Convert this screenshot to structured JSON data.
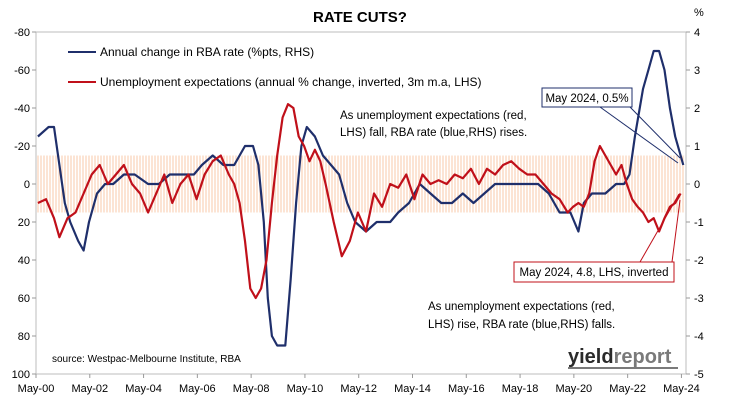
{
  "chart_data": {
    "type": "line",
    "title": "RATE CUTS?",
    "left_axis": {
      "ylim": [
        -80,
        100
      ],
      "inverted": true,
      "ticks": [
        -80,
        -60,
        -40,
        -20,
        0,
        20,
        40,
        60,
        80,
        100
      ]
    },
    "right_axis": {
      "ylim": [
        -5,
        4
      ],
      "ticks": [
        -5,
        -4,
        -3,
        -2,
        -1,
        0,
        1,
        2,
        3,
        4
      ],
      "unit": "%"
    },
    "x_ticks": [
      "May-00",
      "May-02",
      "May-04",
      "May-06",
      "May-08",
      "May-10",
      "May-12",
      "May-14",
      "May-16",
      "May-18",
      "May-20",
      "May-22",
      "May-24"
    ],
    "band": {
      "axis": "left",
      "from": -15,
      "to": 15,
      "color": "#f9d2b8"
    },
    "series": [
      {
        "name": "Annual change in RBA rate (%pts, RHS)",
        "axis": "right",
        "color": "#1f2f6b",
        "points": [
          [
            2000.4,
            1.25
          ],
          [
            2000.8,
            1.5
          ],
          [
            2001.0,
            1.5
          ],
          [
            2001.2,
            0.5
          ],
          [
            2001.4,
            -0.5
          ],
          [
            2001.6,
            -1.0
          ],
          [
            2001.9,
            -1.5
          ],
          [
            2002.1,
            -1.75
          ],
          [
            2002.3,
            -1.0
          ],
          [
            2002.6,
            -0.25
          ],
          [
            2002.9,
            0.0
          ],
          [
            2003.2,
            0.0
          ],
          [
            2003.6,
            0.25
          ],
          [
            2004.0,
            0.25
          ],
          [
            2004.5,
            0.0
          ],
          [
            2004.9,
            0.0
          ],
          [
            2005.3,
            0.25
          ],
          [
            2005.8,
            0.25
          ],
          [
            2006.2,
            0.25
          ],
          [
            2006.5,
            0.5
          ],
          [
            2006.9,
            0.75
          ],
          [
            2007.3,
            0.5
          ],
          [
            2007.7,
            0.5
          ],
          [
            2008.1,
            1.0
          ],
          [
            2008.4,
            1.0
          ],
          [
            2008.6,
            0.5
          ],
          [
            2008.8,
            -1.0
          ],
          [
            2008.95,
            -3.0
          ],
          [
            2009.1,
            -4.0
          ],
          [
            2009.3,
            -4.25
          ],
          [
            2009.6,
            -4.25
          ],
          [
            2009.8,
            -2.5
          ],
          [
            2010.0,
            -0.5
          ],
          [
            2010.2,
            1.0
          ],
          [
            2010.4,
            1.5
          ],
          [
            2010.7,
            1.25
          ],
          [
            2011.0,
            0.75
          ],
          [
            2011.3,
            0.5
          ],
          [
            2011.6,
            0.25
          ],
          [
            2011.9,
            -0.5
          ],
          [
            2012.2,
            -1.0
          ],
          [
            2012.6,
            -1.25
          ],
          [
            2013.0,
            -1.0
          ],
          [
            2013.5,
            -1.0
          ],
          [
            2013.8,
            -0.75
          ],
          [
            2014.2,
            -0.5
          ],
          [
            2014.6,
            0.0
          ],
          [
            2015.0,
            -0.25
          ],
          [
            2015.4,
            -0.5
          ],
          [
            2015.8,
            -0.5
          ],
          [
            2016.2,
            -0.25
          ],
          [
            2016.6,
            -0.5
          ],
          [
            2017.0,
            -0.25
          ],
          [
            2017.4,
            0.0
          ],
          [
            2017.8,
            0.0
          ],
          [
            2018.5,
            0.0
          ],
          [
            2019.0,
            0.0
          ],
          [
            2019.4,
            -0.25
          ],
          [
            2019.8,
            -0.75
          ],
          [
            2020.2,
            -0.75
          ],
          [
            2020.5,
            -1.25
          ],
          [
            2020.7,
            -0.5
          ],
          [
            2021.0,
            -0.25
          ],
          [
            2021.5,
            -0.25
          ],
          [
            2021.9,
            0.0
          ],
          [
            2022.2,
            0.0
          ],
          [
            2022.4,
            0.25
          ],
          [
            2022.6,
            1.25
          ],
          [
            2022.9,
            2.5
          ],
          [
            2023.1,
            3.0
          ],
          [
            2023.3,
            3.5
          ],
          [
            2023.5,
            3.5
          ],
          [
            2023.7,
            3.0
          ],
          [
            2023.9,
            2.0
          ],
          [
            2024.1,
            1.25
          ],
          [
            2024.3,
            0.75
          ],
          [
            2024.4,
            0.5
          ]
        ]
      },
      {
        "name": "Unemployment expectations (annual % change, inverted, 3m m.a, LHS)",
        "axis": "left",
        "color": "#c0101a",
        "points": [
          [
            2000.4,
            10
          ],
          [
            2000.7,
            8
          ],
          [
            2001.0,
            18
          ],
          [
            2001.2,
            28
          ],
          [
            2001.5,
            18
          ],
          [
            2001.8,
            15
          ],
          [
            2002.1,
            5
          ],
          [
            2002.4,
            -5
          ],
          [
            2002.7,
            -10
          ],
          [
            2003.0,
            0
          ],
          [
            2003.3,
            -5
          ],
          [
            2003.6,
            -10
          ],
          [
            2003.9,
            0
          ],
          [
            2004.2,
            5
          ],
          [
            2004.5,
            15
          ],
          [
            2004.8,
            5
          ],
          [
            2005.1,
            -5
          ],
          [
            2005.4,
            10
          ],
          [
            2005.7,
            0
          ],
          [
            2006.0,
            -5
          ],
          [
            2006.3,
            8
          ],
          [
            2006.6,
            -5
          ],
          [
            2006.9,
            -12
          ],
          [
            2007.2,
            -15
          ],
          [
            2007.5,
            -5
          ],
          [
            2007.7,
            0
          ],
          [
            2007.9,
            10
          ],
          [
            2008.1,
            30
          ],
          [
            2008.3,
            55
          ],
          [
            2008.5,
            60
          ],
          [
            2008.7,
            55
          ],
          [
            2008.9,
            40
          ],
          [
            2009.1,
            10
          ],
          [
            2009.3,
            -15
          ],
          [
            2009.5,
            -35
          ],
          [
            2009.7,
            -42
          ],
          [
            2009.9,
            -40
          ],
          [
            2010.1,
            -25
          ],
          [
            2010.3,
            -20
          ],
          [
            2010.5,
            -12
          ],
          [
            2010.7,
            -18
          ],
          [
            2010.9,
            -12
          ],
          [
            2011.1,
            0
          ],
          [
            2011.4,
            20
          ],
          [
            2011.7,
            38
          ],
          [
            2012.0,
            30
          ],
          [
            2012.3,
            15
          ],
          [
            2012.6,
            25
          ],
          [
            2012.9,
            5
          ],
          [
            2013.2,
            12
          ],
          [
            2013.5,
            0
          ],
          [
            2013.8,
            2
          ],
          [
            2014.1,
            -5
          ],
          [
            2014.4,
            8
          ],
          [
            2014.7,
            -5
          ],
          [
            2015.0,
            0
          ],
          [
            2015.3,
            -2
          ],
          [
            2015.6,
            0
          ],
          [
            2015.9,
            -5
          ],
          [
            2016.2,
            -3
          ],
          [
            2016.5,
            -8
          ],
          [
            2016.8,
            0
          ],
          [
            2017.1,
            -8
          ],
          [
            2017.4,
            -5
          ],
          [
            2017.7,
            -10
          ],
          [
            2018.0,
            -12
          ],
          [
            2018.3,
            -8
          ],
          [
            2018.6,
            -5
          ],
          [
            2018.9,
            -5
          ],
          [
            2019.2,
            0
          ],
          [
            2019.5,
            5
          ],
          [
            2019.8,
            8
          ],
          [
            2020.1,
            15
          ],
          [
            2020.3,
            12
          ],
          [
            2020.5,
            10
          ],
          [
            2020.7,
            12
          ],
          [
            2020.9,
            5
          ],
          [
            2021.1,
            -12
          ],
          [
            2021.3,
            -20
          ],
          [
            2021.5,
            -15
          ],
          [
            2021.7,
            -10
          ],
          [
            2021.9,
            -5
          ],
          [
            2022.1,
            -10
          ],
          [
            2022.3,
            0
          ],
          [
            2022.5,
            8
          ],
          [
            2022.7,
            12
          ],
          [
            2022.9,
            15
          ],
          [
            2023.1,
            20
          ],
          [
            2023.3,
            18
          ],
          [
            2023.5,
            25
          ],
          [
            2023.7,
            18
          ],
          [
            2023.9,
            12
          ],
          [
            2024.1,
            10
          ],
          [
            2024.3,
            5
          ]
        ]
      }
    ],
    "annotations": {
      "callout_blue": "May 2024, 0.5%",
      "callout_red": "May 2024, 4.8, LHS, inverted",
      "note_top_line1": "As unemployment expectations (red,",
      "note_top_line2": "LHS) fall, RBA rate (blue,RHS) rises.",
      "note_bottom_line1": "As unemployment expectations (red,",
      "note_bottom_line2": "LHS) rise, RBA rate (blue,RHS) falls.",
      "source": "source: Westpac-Melbourne Institute, RBA",
      "logo_part1": "yield",
      "logo_part2": "report"
    }
  }
}
